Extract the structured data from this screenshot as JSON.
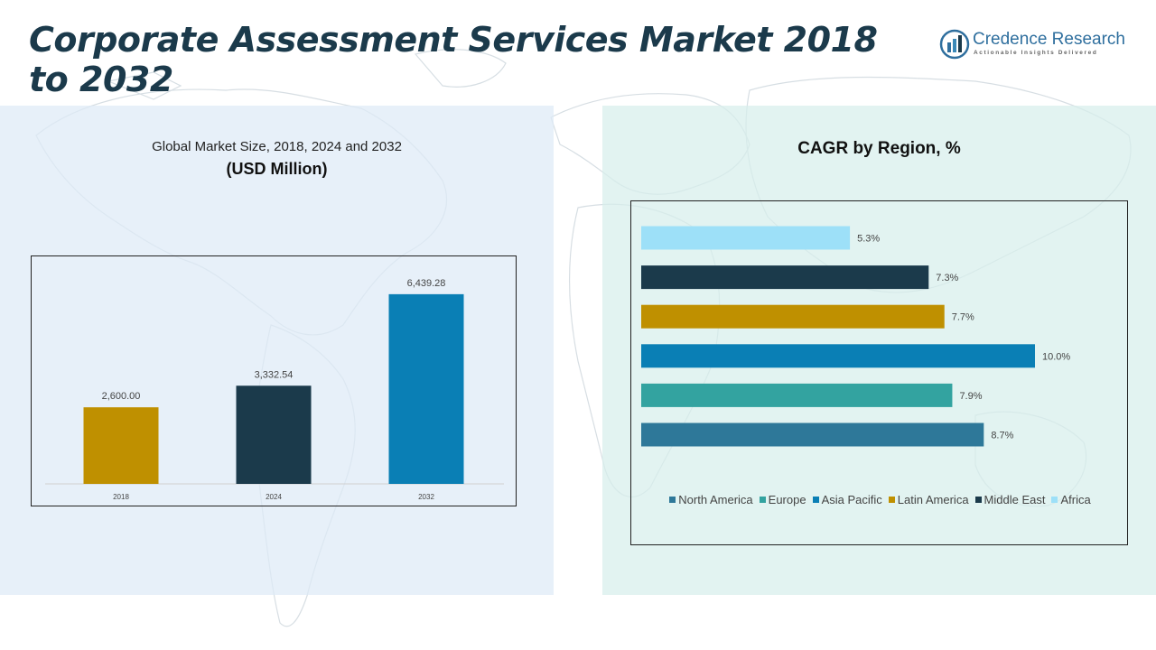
{
  "header": {
    "title": "Corporate Assessment Services Market 2018 to 2032"
  },
  "logo": {
    "name": "Credence Research",
    "tagline": "Actionable Insights Delivered"
  },
  "left_panel": {
    "subtitle": "Global Market Size, 2018, 2024 and 2032",
    "unit": "(USD Million)"
  },
  "right_panel": {
    "title": "CAGR by Region, %"
  },
  "chart_data": [
    {
      "type": "bar",
      "title": "Global Market Size, 2018, 2024 and 2032",
      "ylabel": "(USD Million)",
      "categories": [
        "2018",
        "2024",
        "2032"
      ],
      "values": [
        2600.0,
        3332.54,
        6439.28
      ],
      "value_labels": [
        "2,600.00",
        "3,332.54",
        "6,439.28"
      ],
      "colors": [
        "#bf9000",
        "#1b3a4b",
        "#0a7fb5"
      ],
      "ylim": [
        0,
        7600
      ],
      "grid": false
    },
    {
      "type": "bar",
      "orientation": "horizontal",
      "title": "CAGR by Region, %",
      "categories": [
        "North America",
        "Europe",
        "Asia Pacific",
        "Latin America",
        "Middle East",
        "Africa"
      ],
      "values": [
        8.7,
        7.9,
        10.0,
        7.7,
        7.3,
        5.3
      ],
      "value_labels": [
        "8.7%",
        "7.9%",
        "10.0%",
        "7.7%",
        "7.3%",
        "5.3%"
      ],
      "colors": [
        "#2e7899",
        "#33a3a0",
        "#0a7fb5",
        "#bf9000",
        "#1b3a4b",
        "#9de0f8"
      ],
      "xlim": [
        0,
        10
      ],
      "legend_position": "bottom",
      "grid": false
    }
  ]
}
